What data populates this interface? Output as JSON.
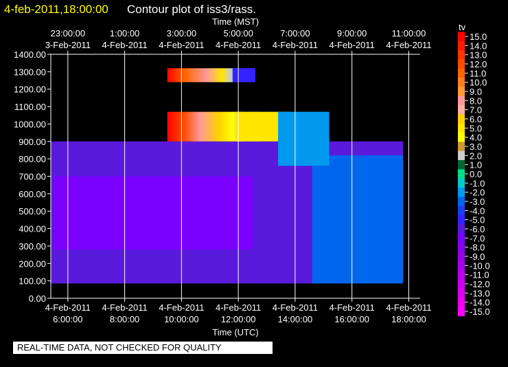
{
  "header": {
    "timestamp": "4-feb-2011,18:00:00",
    "title": "Contour plot of iss3/rass."
  },
  "notice": "REAL-TIME DATA, NOT CHECKED FOR QUALITY",
  "colors": {
    "background": "#000000",
    "timestamp": "#ffff00",
    "text": "#ffffff",
    "gridline": "#ffffff"
  },
  "chart_data": {
    "type": "heatmap",
    "top_axis_label": "Time (MST)",
    "top_ticks": [
      {
        "time": "23:00:00",
        "date": "3-Feb-2011"
      },
      {
        "time": "1:00:00",
        "date": "4-Feb-2011"
      },
      {
        "time": "3:00:00",
        "date": "4-Feb-2011"
      },
      {
        "time": "5:00:00",
        "date": "4-Feb-2011"
      },
      {
        "time": "7:00:00",
        "date": "4-Feb-2011"
      },
      {
        "time": "9:00:00",
        "date": "4-Feb-2011"
      },
      {
        "time": "11:00:00",
        "date": "4-Feb-2011"
      }
    ],
    "xlabel": "Time (UTC)",
    "x_ticks": [
      {
        "date": "4-Feb-2011",
        "time": "6:00:00"
      },
      {
        "date": "4-Feb-2011",
        "time": "8:00:00"
      },
      {
        "date": "4-Feb-2011",
        "time": "10:00:00"
      },
      {
        "date": "4-Feb-2011",
        "time": "12:00:00"
      },
      {
        "date": "4-Feb-2011",
        "time": "14:00:00"
      },
      {
        "date": "4-Feb-2011",
        "time": "16:00:00"
      },
      {
        "date": "4-Feb-2011",
        "time": "18:00:00"
      }
    ],
    "xlim_utc_hours": [
      5.4,
      18.4
    ],
    "ylabel": "",
    "y_ticks": [
      "1400.00",
      "1300.00",
      "1200.00",
      "1100.00",
      "1000.00",
      "900.00",
      "800.00",
      "700.00",
      "600.00",
      "500.00",
      "400.00",
      "300.00",
      "200.00",
      "100.00",
      "0.00"
    ],
    "ylim": [
      0,
      1400
    ],
    "grid": true,
    "colorbar": {
      "title": "tv",
      "levels": [
        "15.0",
        "14.0",
        "13.0",
        "12.0",
        "11.0",
        "10.0",
        "9.0",
        "8.0",
        "7.0",
        "6.0",
        "5.0",
        "4.0",
        "3.0",
        "2.0",
        "1.0",
        "0.0",
        "-1.0",
        "-2.0",
        "-3.0",
        "-4.0",
        "-5.0",
        "-6.0",
        "-7.0",
        "-8.0",
        "-9.0",
        "-10.0",
        "-11.0",
        "-12.0",
        "-13.0",
        "-14.0",
        "-15.0"
      ],
      "colors": [
        "#ff0000",
        "#ff1a00",
        "#ff3300",
        "#ff4c00",
        "#ff6600",
        "#ff7f1a",
        "#ff9933",
        "#ff9999",
        "#ffb0a0",
        "#ffd200",
        "#ffe600",
        "#ffff00",
        "#cc9933",
        "#cccccc",
        "#006633",
        "#00dd88",
        "#00cccc",
        "#0099ee",
        "#0066ee",
        "#1a3ff0",
        "#3322ff",
        "#5a1adc",
        "#7a00ff",
        "#8800ee",
        "#9a00e6",
        "#aa00ee",
        "#bb00ee",
        "#cc00ee",
        "#dd00ee",
        "#ee00ee",
        "#ff00ff"
      ]
    },
    "regions": [
      {
        "name": "lower-layer",
        "t0": 5.4,
        "t1": 17.8,
        "h0": 85,
        "h1": 900,
        "value": -5.5
      },
      {
        "name": "layer-ramp",
        "t0": 14.6,
        "t1": 17.8,
        "h0": 85,
        "h1": 820,
        "value": -3.0
      },
      {
        "name": "mid-core",
        "t0": 5.5,
        "t1": 12.5,
        "h0": 280,
        "h1": 700,
        "value": -7.0
      },
      {
        "name": "upper-core",
        "t0": 9.5,
        "t1": 12.8,
        "h0": 900,
        "h1": 1070,
        "value": 11.0
      },
      {
        "name": "upper-warm-2",
        "t0": 11.9,
        "t1": 13.8,
        "h0": 900,
        "h1": 1070,
        "value": 5.0
      },
      {
        "name": "upper-cool",
        "t0": 13.4,
        "t1": 15.2,
        "h0": 760,
        "h1": 1070,
        "value": -2.0
      },
      {
        "name": "top-band",
        "t0": 9.5,
        "t1": 12.6,
        "h0": 1240,
        "h1": 1320,
        "value": 10.0
      },
      {
        "name": "top-band-cool",
        "t0": 11.8,
        "t1": 12.6,
        "h0": 1240,
        "h1": 1320,
        "value": -5.0
      }
    ]
  }
}
